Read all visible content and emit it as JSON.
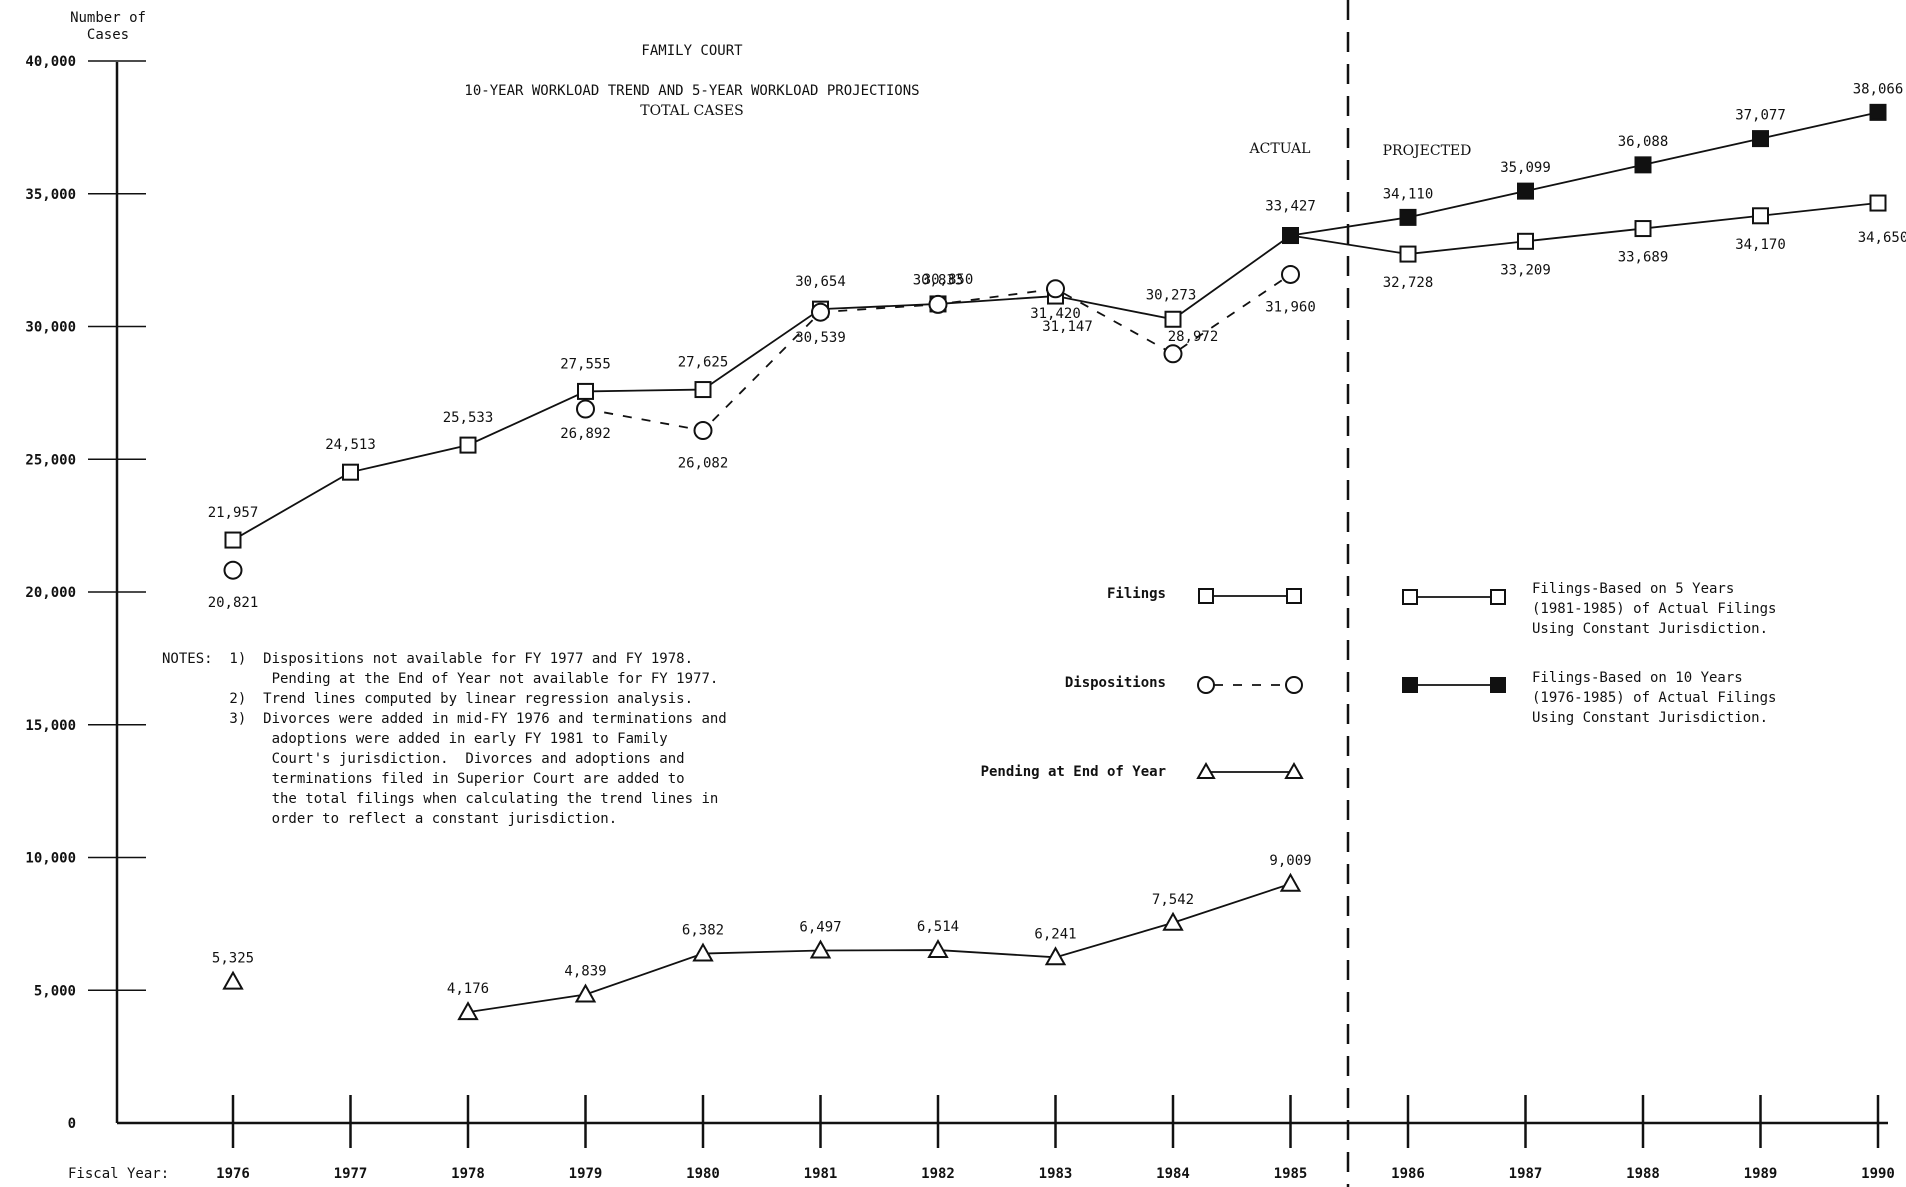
{
  "chart_data": {
    "type": "line",
    "title": "FAMILY COURT",
    "subtitle": "10-YEAR WORKLOAD TREND AND 5-YEAR WORKLOAD PROJECTIONS",
    "subtitle2": "TOTAL CASES",
    "ylabel_line1": "Number of",
    "ylabel_line2": "Cases",
    "xlabel": "Fiscal Year:",
    "ylim": [
      0,
      40000
    ],
    "yticks": [
      0,
      5000,
      10000,
      15000,
      20000,
      25000,
      30000,
      35000,
      40000
    ],
    "ytick_labels": [
      "0",
      "5,000",
      "10,000",
      "15,000",
      "20,000",
      "25,000",
      "30,000",
      "35,000",
      "40,000"
    ],
    "x": [
      1976,
      1977,
      1978,
      1979,
      1980,
      1981,
      1982,
      1983,
      1984,
      1985,
      1986,
      1987,
      1988,
      1989,
      1990
    ],
    "xtick_labels": [
      "1976",
      "1977",
      "1978",
      "1979",
      "1980",
      "1981",
      "1982",
      "1983",
      "1984",
      "1985",
      "1986",
      "1987",
      "1988",
      "1989",
      "1990"
    ],
    "actual_label": "ACTUAL",
    "projected_label": "PROJECTED",
    "series": [
      {
        "name": "Filings",
        "marker": "open-square",
        "line": "solid",
        "x": [
          1976,
          1977,
          1978,
          1979,
          1980,
          1981,
          1982,
          1983,
          1984,
          1985
        ],
        "values": [
          21957,
          24513,
          25533,
          27555,
          27625,
          30654,
          30850,
          31147,
          30273,
          33427
        ],
        "labels": [
          "21,957",
          "24,513",
          "25,533",
          "27,555",
          "27,625",
          "30,654",
          "30,850",
          "31,147",
          "30,273",
          "33,427"
        ]
      },
      {
        "name": "Dispositions",
        "marker": "open-circle",
        "line": "dashed",
        "x": [
          1976,
          1979,
          1980,
          1981,
          1982,
          1983,
          1984,
          1985
        ],
        "values": [
          20821,
          26892,
          26082,
          30539,
          30833,
          31420,
          28972,
          31960
        ],
        "labels": [
          "20,821",
          "26,892",
          "26,082",
          "30,539",
          "30,833",
          "31,420",
          "28,972",
          "31,960"
        ]
      },
      {
        "name": "Pending at End of Year",
        "marker": "open-triangle",
        "line": "solid",
        "x": [
          1976,
          1978,
          1979,
          1980,
          1981,
          1982,
          1983,
          1984,
          1985
        ],
        "values": [
          5325,
          4176,
          4839,
          6382,
          6497,
          6514,
          6241,
          7542,
          9009
        ],
        "labels": [
          "5,325",
          "4,176",
          "4,839",
          "6,382",
          "6,497",
          "6,514",
          "6,241",
          "7,542",
          "9,009"
        ]
      },
      {
        "name": "Filings-Based on 5 Years (1981-1985) of Actual Filings Using Constant Jurisdiction.",
        "marker": "open-square",
        "line": "solid",
        "x": [
          1985,
          1986,
          1987,
          1988,
          1989,
          1990
        ],
        "values": [
          33427,
          32728,
          33209,
          33689,
          34170,
          34650
        ],
        "labels": [
          "",
          "32,728",
          "33,209",
          "33,689",
          "34,170",
          "34,650"
        ]
      },
      {
        "name": "Filings-Based on 10 Years (1976-1985) of Actual Filings Using Constant Jurisdiction.",
        "marker": "filled-square",
        "line": "solid",
        "x": [
          1985,
          1986,
          1987,
          1988,
          1989,
          1990
        ],
        "values": [
          33427,
          34110,
          35099,
          36088,
          37077,
          38066
        ],
        "labels": [
          "",
          "34,110",
          "35,099",
          "36,088",
          "37,077",
          "38,066"
        ]
      }
    ],
    "legend": {
      "filings": "Filings",
      "dispositions": "Dispositions",
      "pending": "Pending at End of Year",
      "proj5": [
        "Filings-Based on 5 Years",
        "(1981-1985) of Actual Filings",
        "Using Constant Jurisdiction."
      ],
      "proj10": [
        "Filings-Based on 10 Years",
        "(1976-1985) of Actual Filings",
        "Using Constant Jurisdiction."
      ]
    },
    "notes": [
      "NOTES:  1)  Dispositions not available for FY 1977 and FY 1978.",
      "             Pending at the End of Year not available for FY 1977.",
      "        2)  Trend lines computed by linear regression analysis.",
      "        3)  Divorces were added in mid-FY 1976 and terminations and",
      "             adoptions were added in early FY 1981 to Family",
      "             Court's jurisdiction.  Divorces and adoptions and",
      "             terminations filed in Superior Court are added to",
      "             the total filings when calculating the trend lines in",
      "             order to reflect a constant jurisdiction."
    ]
  }
}
